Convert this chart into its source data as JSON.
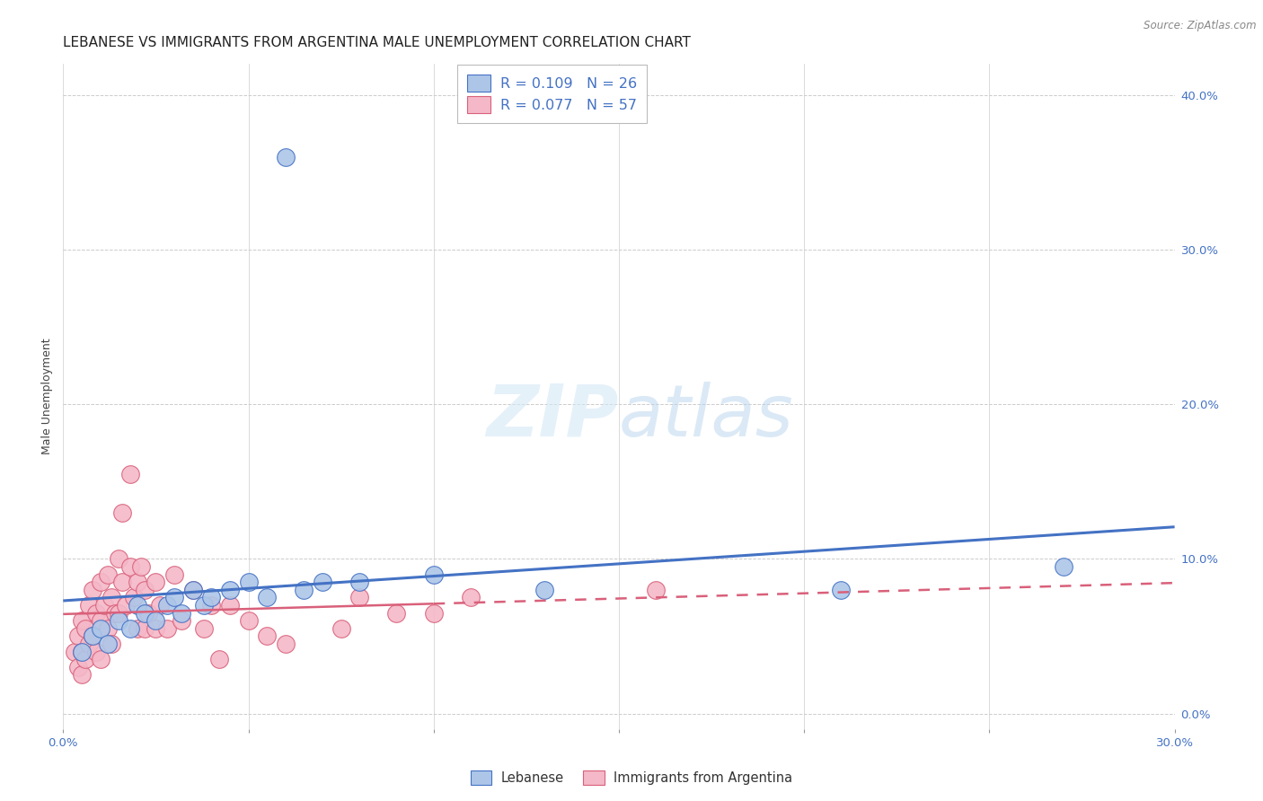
{
  "title": "LEBANESE VS IMMIGRANTS FROM ARGENTINA MALE UNEMPLOYMENT CORRELATION CHART",
  "source": "Source: ZipAtlas.com",
  "ylabel": "Male Unemployment",
  "ylabel_right_ticks": [
    "0.0%",
    "10.0%",
    "20.0%",
    "30.0%",
    "40.0%"
  ],
  "ylabel_right_vals": [
    0.0,
    0.1,
    0.2,
    0.3,
    0.4
  ],
  "xlim": [
    0.0,
    0.3
  ],
  "ylim": [
    -0.01,
    0.42
  ],
  "legend1_R": "0.109",
  "legend1_N": "26",
  "legend2_R": "0.077",
  "legend2_N": "57",
  "blue_color": "#adc6e8",
  "blue_line_color": "#4472c4",
  "pink_color": "#f4b8c8",
  "pink_line_color": "#d9607a",
  "blue_x": [
    0.005,
    0.008,
    0.01,
    0.012,
    0.015,
    0.018,
    0.02,
    0.022,
    0.025,
    0.028,
    0.03,
    0.032,
    0.035,
    0.038,
    0.04,
    0.045,
    0.05,
    0.055,
    0.06,
    0.065,
    0.07,
    0.08,
    0.1,
    0.13,
    0.21,
    0.27
  ],
  "blue_y": [
    0.04,
    0.05,
    0.055,
    0.045,
    0.06,
    0.055,
    0.07,
    0.065,
    0.06,
    0.07,
    0.075,
    0.065,
    0.08,
    0.07,
    0.075,
    0.08,
    0.085,
    0.075,
    0.36,
    0.08,
    0.085,
    0.085,
    0.09,
    0.08,
    0.08,
    0.095
  ],
  "pink_x": [
    0.003,
    0.004,
    0.004,
    0.005,
    0.005,
    0.005,
    0.006,
    0.006,
    0.007,
    0.007,
    0.008,
    0.008,
    0.009,
    0.009,
    0.01,
    0.01,
    0.01,
    0.011,
    0.012,
    0.012,
    0.013,
    0.013,
    0.014,
    0.015,
    0.015,
    0.016,
    0.016,
    0.017,
    0.018,
    0.018,
    0.019,
    0.02,
    0.02,
    0.021,
    0.022,
    0.022,
    0.023,
    0.025,
    0.025,
    0.026,
    0.028,
    0.03,
    0.032,
    0.035,
    0.038,
    0.04,
    0.042,
    0.045,
    0.05,
    0.055,
    0.06,
    0.075,
    0.08,
    0.09,
    0.1,
    0.11,
    0.16
  ],
  "pink_y": [
    0.04,
    0.05,
    0.03,
    0.06,
    0.04,
    0.025,
    0.055,
    0.035,
    0.07,
    0.045,
    0.08,
    0.05,
    0.065,
    0.04,
    0.085,
    0.06,
    0.035,
    0.07,
    0.09,
    0.055,
    0.075,
    0.045,
    0.065,
    0.1,
    0.065,
    0.13,
    0.085,
    0.07,
    0.155,
    0.095,
    0.075,
    0.085,
    0.055,
    0.095,
    0.08,
    0.055,
    0.065,
    0.085,
    0.055,
    0.07,
    0.055,
    0.09,
    0.06,
    0.08,
    0.055,
    0.07,
    0.035,
    0.07,
    0.06,
    0.05,
    0.045,
    0.055,
    0.075,
    0.065,
    0.065,
    0.075,
    0.08
  ],
  "background_color": "#ffffff",
  "grid_color": "#cccccc",
  "title_fontsize": 11,
  "axis_label_fontsize": 9,
  "tick_fontsize": 9.5
}
